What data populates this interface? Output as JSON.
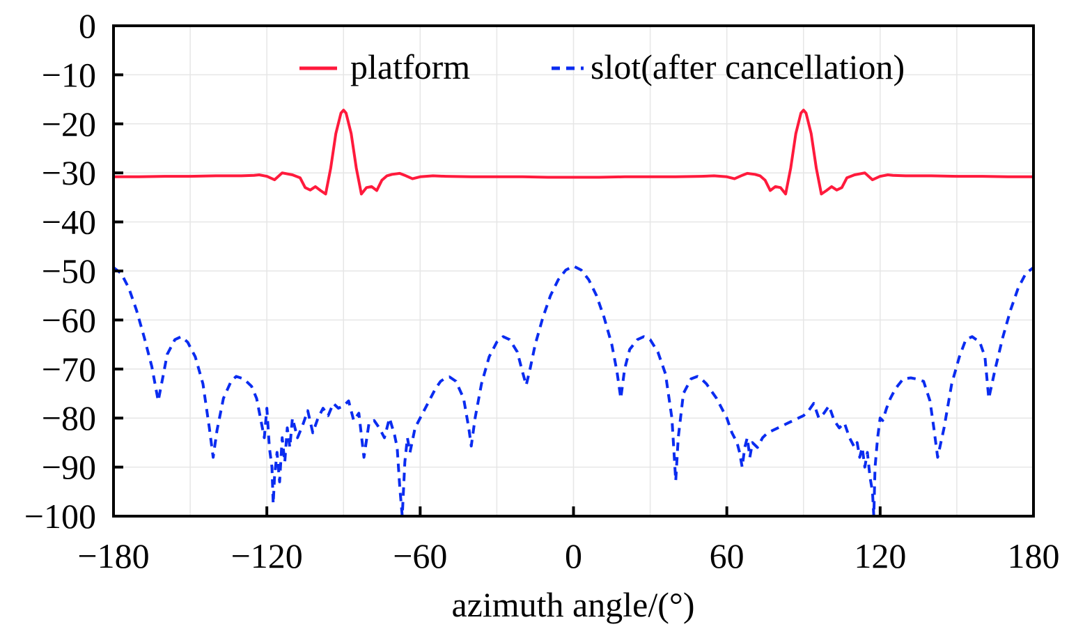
{
  "chart_data": {
    "type": "line",
    "title": "",
    "xlabel": "azimuth angle/(°)",
    "ylabel": "",
    "xlim": [
      -180,
      180
    ],
    "ylim": [
      -100,
      0
    ],
    "xticks": [
      -180,
      -120,
      -60,
      0,
      60,
      120,
      180
    ],
    "xtick_labels": [
      "−180",
      "−120",
      "−60",
      "0",
      "60",
      "120",
      "180"
    ],
    "yticks": [
      0,
      -10,
      -20,
      -30,
      -40,
      -50,
      -60,
      -70,
      -80,
      -90,
      -100
    ],
    "ytick_labels": [
      "0",
      "−10",
      "−20",
      "−30",
      "−40",
      "−50",
      "−60",
      "−70",
      "−80",
      "−90",
      "−100"
    ],
    "grid": true,
    "grid_x_step": 30,
    "legend_position": "top-right",
    "series": [
      {
        "name": "platform",
        "color": "#ff1a3c",
        "style": "solid",
        "x": [
          -180,
          -170,
          -160,
          -150,
          -140,
          -130,
          -125,
          -123,
          -120,
          -117,
          -114,
          -110,
          -107,
          -105,
          -103,
          -101,
          -99,
          -97,
          -95,
          -93,
          -91,
          -90,
          -89,
          -87,
          -85,
          -83,
          -81,
          -79,
          -77,
          -75,
          -73,
          -71,
          -68,
          -66,
          -63,
          -60,
          -55,
          -50,
          -40,
          -30,
          -20,
          -10,
          0,
          10,
          20,
          30,
          40,
          50,
          55,
          60,
          63,
          66,
          68,
          71,
          73,
          75,
          77,
          79,
          81,
          83,
          85,
          87,
          89,
          90,
          91,
          93,
          95,
          97,
          99,
          101,
          103,
          105,
          107,
          110,
          114,
          117,
          120,
          123,
          125,
          130,
          140,
          150,
          160,
          170,
          180
        ],
        "y": [
          -30.8,
          -30.8,
          -30.7,
          -30.7,
          -30.6,
          -30.6,
          -30.5,
          -30.4,
          -30.7,
          -31.4,
          -30.0,
          -30.4,
          -31.0,
          -33.0,
          -33.5,
          -32.8,
          -33.6,
          -34.3,
          -29.0,
          -22.0,
          -17.8,
          -17.2,
          -17.8,
          -22.0,
          -29.0,
          -34.3,
          -33.0,
          -32.8,
          -33.6,
          -31.5,
          -30.6,
          -30.3,
          -30.1,
          -30.5,
          -31.2,
          -30.8,
          -30.6,
          -30.7,
          -30.8,
          -30.8,
          -30.8,
          -30.9,
          -30.9,
          -30.9,
          -30.8,
          -30.8,
          -30.8,
          -30.7,
          -30.6,
          -30.8,
          -31.2,
          -30.5,
          -30.1,
          -30.3,
          -30.6,
          -31.5,
          -33.6,
          -32.8,
          -33.0,
          -34.3,
          -29.0,
          -22.0,
          -17.8,
          -17.2,
          -17.8,
          -22.0,
          -29.0,
          -34.3,
          -33.6,
          -32.8,
          -33.5,
          -33.0,
          -31.0,
          -30.4,
          -30.0,
          -31.4,
          -30.7,
          -30.4,
          -30.5,
          -30.6,
          -30.6,
          -30.7,
          -30.7,
          -30.8,
          -30.8
        ]
      },
      {
        "name": "slot(after cancellation)",
        "color": "#0a2cf0",
        "style": "dashed",
        "x": [
          -180,
          -177,
          -174,
          -171,
          -168,
          -165,
          -162.5,
          -161,
          -159,
          -156,
          -153.5,
          -151,
          -148,
          -145,
          -142.5,
          -141,
          -139.5,
          -137,
          -134,
          -132,
          -129,
          -126,
          -124,
          -122.5,
          -121,
          -120,
          -119,
          -118,
          -117.5,
          -117,
          -116,
          -115,
          -114,
          -113,
          -112,
          -111,
          -110,
          -108,
          -106,
          -104,
          -102,
          -100,
          -98,
          -96,
          -94,
          -92,
          -90,
          -88,
          -86,
          -84,
          -82,
          -80,
          -78,
          -76,
          -74,
          -72,
          -70,
          -69,
          -68,
          -67,
          -66,
          -65,
          -64,
          -62,
          -60,
          -58,
          -56,
          -54,
          -52,
          -50,
          -48.5,
          -46,
          -43,
          -41,
          -40,
          -38.5,
          -36,
          -33,
          -30,
          -27.5,
          -25,
          -22,
          -20,
          -18.5,
          -17,
          -15,
          -12,
          -9,
          -6,
          -3,
          0,
          3,
          6,
          9,
          12,
          15,
          17,
          18.5,
          20,
          22,
          25,
          27.5,
          30,
          33,
          36,
          38.5,
          40,
          41,
          43,
          46,
          48.5,
          50,
          52,
          54,
          56,
          58,
          60,
          62,
          64,
          65,
          66,
          67,
          68,
          69,
          70,
          72,
          74,
          76,
          78,
          80,
          82,
          84,
          86,
          88,
          90,
          92,
          94,
          96,
          98,
          100,
          102,
          104,
          106,
          108,
          110,
          111,
          112,
          113,
          114,
          115,
          116,
          117,
          117.5,
          118,
          119,
          120,
          121,
          122.5,
          124,
          126,
          129,
          132,
          134,
          137,
          139.5,
          141,
          142.5,
          145,
          148,
          151,
          153.5,
          156,
          159,
          161,
          162.5,
          165,
          168,
          171,
          174,
          177,
          180
        ],
        "y": [
          -49.3,
          -50.5,
          -53.5,
          -58.0,
          -63.5,
          -69.5,
          -76.5,
          -72.5,
          -67.0,
          -64.0,
          -63.4,
          -64.5,
          -67.5,
          -73.0,
          -82.0,
          -88.0,
          -82.5,
          -76.0,
          -72.5,
          -71.5,
          -72.0,
          -73.5,
          -76.0,
          -80.0,
          -84.0,
          -78.0,
          -86.0,
          -90.0,
          -97.5,
          -92.0,
          -87.0,
          -93.0,
          -84.0,
          -89.0,
          -82.0,
          -86.0,
          -80.0,
          -84.0,
          -81.5,
          -78.5,
          -83.0,
          -80.0,
          -78.0,
          -79.5,
          -77.0,
          -78.0,
          -77.5,
          -76.5,
          -80.5,
          -79.0,
          -88.0,
          -81.0,
          -80.5,
          -82.0,
          -84.0,
          -80.0,
          -83.5,
          -86.0,
          -94.0,
          -100.0,
          -89.0,
          -84.0,
          -87.0,
          -82.0,
          -80.0,
          -78.0,
          -76.0,
          -74.0,
          -72.5,
          -71.8,
          -71.6,
          -72.5,
          -76.0,
          -82.0,
          -85.7,
          -80.0,
          -73.0,
          -67.5,
          -64.5,
          -63.4,
          -64.0,
          -66.5,
          -70.5,
          -73.3,
          -70.0,
          -65.0,
          -59.5,
          -55.0,
          -51.8,
          -49.8,
          -49.0,
          -49.8,
          -51.8,
          -55.0,
          -59.5,
          -65.0,
          -70.5,
          -76.0,
          -70.0,
          -66.0,
          -64.0,
          -63.4,
          -64.0,
          -66.5,
          -71.0,
          -80.0,
          -92.8,
          -84.0,
          -75.0,
          -72.0,
          -71.5,
          -72.0,
          -73.0,
          -74.5,
          -76.0,
          -78.0,
          -80.0,
          -83.0,
          -85.0,
          -87.0,
          -90.0,
          -86.0,
          -84.0,
          -88.0,
          -85.0,
          -86.0,
          -84.0,
          -83.0,
          -82.5,
          -82.0,
          -81.5,
          -81.0,
          -80.5,
          -80.0,
          -79.5,
          -78.5,
          -77.0,
          -80.0,
          -79.0,
          -77.5,
          -80.5,
          -82.0,
          -81.0,
          -84.0,
          -86.0,
          -85.0,
          -88.0,
          -86.0,
          -90.0,
          -87.0,
          -92.0,
          -95.0,
          -100.0,
          -90.0,
          -84.0,
          -80.0,
          -80.5,
          -78.0,
          -76.0,
          -74.0,
          -72.0,
          -71.8,
          -72.0,
          -72.5,
          -76.5,
          -82.0,
          -88.0,
          -82.0,
          -73.0,
          -67.5,
          -64.0,
          -63.4,
          -64.5,
          -67.5,
          -76.0,
          -70.0,
          -63.5,
          -58.0,
          -53.5,
          -50.5,
          -49.3
        ]
      }
    ]
  },
  "legend": {
    "items": [
      {
        "label": "platform",
        "color": "#ff1a3c",
        "style": "solid"
      },
      {
        "label": "slot(after cancellation)",
        "color": "#0a2cf0",
        "style": "dashed"
      }
    ]
  }
}
